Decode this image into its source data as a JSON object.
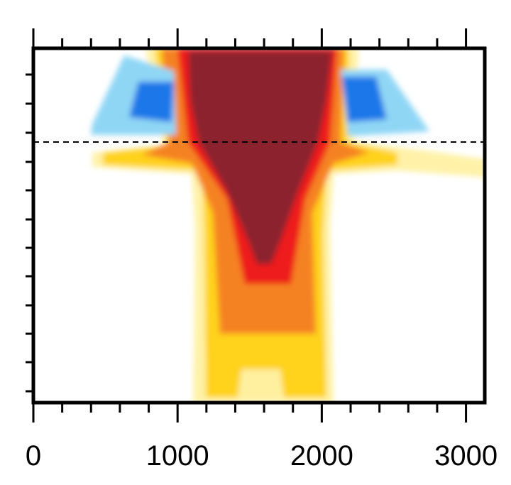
{
  "chart_data": {
    "type": "heatmap",
    "xlim": [
      0,
      3130
    ],
    "xticks": [
      0,
      1000,
      2000,
      3000
    ],
    "xminor_ticks": [
      200,
      400,
      600,
      800,
      1200,
      1400,
      1600,
      1800,
      2200,
      2400,
      2600,
      2800
    ]
  }
}
